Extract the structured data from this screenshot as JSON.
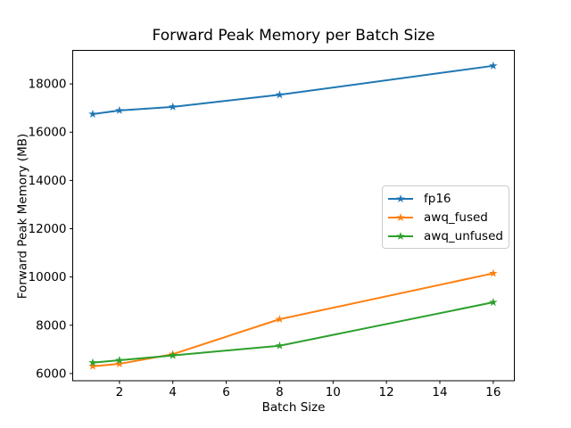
{
  "chart": {
    "title": "Forward Peak Memory per Batch Size",
    "xlabel": "Batch Size",
    "ylabel": "Forward Peak Memory (MB)"
  },
  "chart_data": {
    "type": "line",
    "title": "Forward Peak Memory per Batch Size",
    "xlabel": "Batch Size",
    "ylabel": "Forward Peak Memory (MB)",
    "x": [
      1,
      2,
      4,
      8,
      16
    ],
    "series": [
      {
        "name": "fp16",
        "color": "#1f77b4",
        "values": [
          16750,
          16900,
          17050,
          17550,
          18750
        ]
      },
      {
        "name": "awq_fused",
        "color": "#ff7f0e",
        "values": [
          6300,
          6400,
          6800,
          8250,
          10150
        ]
      },
      {
        "name": "awq_unfused",
        "color": "#2ca02c",
        "values": [
          6450,
          6550,
          6750,
          7150,
          8950
        ]
      }
    ],
    "marker": "star",
    "x_ticks": [
      2,
      4,
      6,
      8,
      10,
      12,
      14,
      16
    ],
    "y_ticks": [
      6000,
      8000,
      10000,
      12000,
      14000,
      16000,
      18000
    ],
    "xlim": [
      0.25,
      16.79
    ],
    "ylim": [
      5700,
      19390
    ],
    "grid": false,
    "legend_position": "center right",
    "axis_color": "#000000",
    "background_color": "#ffffff"
  }
}
